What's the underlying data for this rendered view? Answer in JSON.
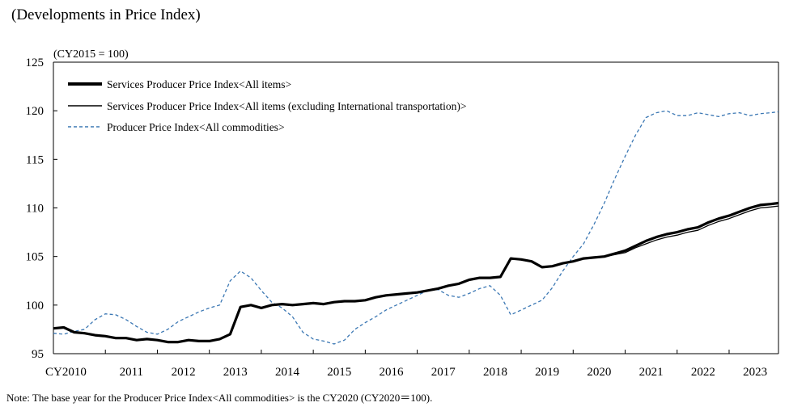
{
  "page_title": "(Developments in Price Index)",
  "unit_label": "(CY2015 = 100)",
  "note": "Note: The base year for the Producer Price Index<All commodities> is the CY2020 (CY2020＝100).",
  "chart_data": {
    "type": "line",
    "title": "(Developments in Price Index)",
    "xlabel": "",
    "ylabel": "(CY2015 = 100)",
    "ylim": [
      95,
      125
    ],
    "yticks": [
      95,
      100,
      105,
      110,
      115,
      120,
      125
    ],
    "xlim": [
      2010.0,
      2023.95
    ],
    "xtick_labels": [
      {
        "label": "CY2010",
        "x": 2010.0
      },
      {
        "label": "2011",
        "x": 2011.5
      },
      {
        "label": "2012",
        "x": 2012.5
      },
      {
        "label": "2013",
        "x": 2013.5
      },
      {
        "label": "2014",
        "x": 2014.5
      },
      {
        "label": "2015",
        "x": 2015.5
      },
      {
        "label": "2016",
        "x": 2016.5
      },
      {
        "label": "2017",
        "x": 2017.5
      },
      {
        "label": "2018",
        "x": 2018.5
      },
      {
        "label": "2019",
        "x": 2019.5
      },
      {
        "label": "2020",
        "x": 2020.5
      },
      {
        "label": "2021",
        "x": 2021.5
      },
      {
        "label": "2022",
        "x": 2022.5
      },
      {
        "label": "2023",
        "x": 2023.5
      }
    ],
    "legend_position": "top-left",
    "series": [
      {
        "name": "Services Producer Price Index<All items>",
        "style": "thick",
        "color": "#000000",
        "x": [
          2010.0,
          2010.2,
          2010.4,
          2010.6,
          2010.8,
          2011.0,
          2011.2,
          2011.4,
          2011.6,
          2011.8,
          2012.0,
          2012.2,
          2012.4,
          2012.6,
          2012.8,
          2013.0,
          2013.2,
          2013.4,
          2013.6,
          2013.8,
          2014.0,
          2014.2,
          2014.4,
          2014.6,
          2014.8,
          2015.0,
          2015.2,
          2015.4,
          2015.6,
          2015.8,
          2016.0,
          2016.2,
          2016.4,
          2016.6,
          2016.8,
          2017.0,
          2017.2,
          2017.4,
          2017.6,
          2017.8,
          2018.0,
          2018.2,
          2018.4,
          2018.6,
          2018.8,
          2019.0,
          2019.2,
          2019.4,
          2019.6,
          2019.8,
          2020.0,
          2020.2,
          2020.4,
          2020.6,
          2020.8,
          2021.0,
          2021.2,
          2021.4,
          2021.6,
          2021.8,
          2022.0,
          2022.2,
          2022.4,
          2022.6,
          2022.8,
          2023.0,
          2023.2,
          2023.4,
          2023.6,
          2023.8,
          2023.95
        ],
        "values": [
          97.6,
          97.7,
          97.2,
          97.1,
          96.9,
          96.8,
          96.6,
          96.6,
          96.4,
          96.5,
          96.4,
          96.2,
          96.2,
          96.4,
          96.3,
          96.3,
          96.5,
          97.0,
          99.8,
          100.0,
          99.7,
          100.0,
          100.1,
          100.0,
          100.1,
          100.2,
          100.1,
          100.3,
          100.4,
          100.4,
          100.5,
          100.8,
          101.0,
          101.1,
          101.2,
          101.3,
          101.5,
          101.7,
          102.0,
          102.2,
          102.6,
          102.8,
          102.8,
          102.9,
          104.8,
          104.7,
          104.5,
          103.9,
          104.0,
          104.3,
          104.5,
          104.8,
          104.9,
          105.0,
          105.3,
          105.6,
          106.1,
          106.6,
          107.0,
          107.3,
          107.5,
          107.8,
          108.0,
          108.5,
          108.9,
          109.2,
          109.6,
          110.0,
          110.3,
          110.4,
          110.5
        ]
      },
      {
        "name": "Services Producer Price Index<All items (excluding International transportation)>",
        "style": "thin",
        "color": "#000000",
        "x": [
          2010.0,
          2010.2,
          2010.4,
          2010.6,
          2010.8,
          2011.0,
          2011.2,
          2011.4,
          2011.6,
          2011.8,
          2012.0,
          2012.2,
          2012.4,
          2012.6,
          2012.8,
          2013.0,
          2013.2,
          2013.4,
          2013.6,
          2013.8,
          2014.0,
          2014.2,
          2014.4,
          2014.6,
          2014.8,
          2015.0,
          2015.2,
          2015.4,
          2015.6,
          2015.8,
          2016.0,
          2016.2,
          2016.4,
          2016.6,
          2016.8,
          2017.0,
          2017.2,
          2017.4,
          2017.6,
          2017.8,
          2018.0,
          2018.2,
          2018.4,
          2018.6,
          2018.8,
          2019.0,
          2019.2,
          2019.4,
          2019.6,
          2019.8,
          2020.0,
          2020.2,
          2020.4,
          2020.6,
          2020.8,
          2021.0,
          2021.2,
          2021.4,
          2021.6,
          2021.8,
          2022.0,
          2022.2,
          2022.4,
          2022.6,
          2022.8,
          2023.0,
          2023.2,
          2023.4,
          2023.6,
          2023.8,
          2023.95
        ],
        "values": [
          97.6,
          97.7,
          97.2,
          97.1,
          96.9,
          96.8,
          96.6,
          96.6,
          96.4,
          96.5,
          96.4,
          96.2,
          96.2,
          96.4,
          96.3,
          96.3,
          96.5,
          97.0,
          99.8,
          100.0,
          99.7,
          100.0,
          100.1,
          100.0,
          100.1,
          100.2,
          100.1,
          100.3,
          100.4,
          100.4,
          100.5,
          100.8,
          101.0,
          101.1,
          101.2,
          101.3,
          101.5,
          101.7,
          102.0,
          102.2,
          102.6,
          102.8,
          102.8,
          102.9,
          104.8,
          104.7,
          104.5,
          103.9,
          104.0,
          104.3,
          104.5,
          104.8,
          104.9,
          105.0,
          105.2,
          105.4,
          105.9,
          106.3,
          106.7,
          107.0,
          107.2,
          107.5,
          107.7,
          108.2,
          108.6,
          108.9,
          109.3,
          109.7,
          110.0,
          110.1,
          110.2
        ]
      },
      {
        "name": "Producer Price Index<All commodities>",
        "style": "dashed",
        "color": "#3c78b4",
        "x": [
          2010.0,
          2010.2,
          2010.4,
          2010.6,
          2010.8,
          2011.0,
          2011.2,
          2011.4,
          2011.6,
          2011.8,
          2012.0,
          2012.2,
          2012.4,
          2012.6,
          2012.8,
          2013.0,
          2013.2,
          2013.4,
          2013.6,
          2013.8,
          2014.0,
          2014.2,
          2014.4,
          2014.6,
          2014.8,
          2015.0,
          2015.2,
          2015.4,
          2015.6,
          2015.8,
          2016.0,
          2016.2,
          2016.4,
          2016.6,
          2016.8,
          2017.0,
          2017.2,
          2017.4,
          2017.6,
          2017.8,
          2018.0,
          2018.2,
          2018.4,
          2018.6,
          2018.8,
          2019.0,
          2019.2,
          2019.4,
          2019.6,
          2019.8,
          2020.0,
          2020.2,
          2020.4,
          2020.6,
          2020.8,
          2021.0,
          2021.2,
          2021.4,
          2021.6,
          2021.8,
          2022.0,
          2022.2,
          2022.4,
          2022.6,
          2022.8,
          2023.0,
          2023.2,
          2023.4,
          2023.6,
          2023.8,
          2023.95
        ],
        "values": [
          97.1,
          97.0,
          97.3,
          97.5,
          98.5,
          99.1,
          99.0,
          98.5,
          97.8,
          97.2,
          97.0,
          97.5,
          98.3,
          98.8,
          99.3,
          99.7,
          100.0,
          102.5,
          103.5,
          102.8,
          101.5,
          100.3,
          99.7,
          98.8,
          97.2,
          96.5,
          96.3,
          96.0,
          96.4,
          97.5,
          98.2,
          98.8,
          99.5,
          100.0,
          100.5,
          101.0,
          101.5,
          101.6,
          101.0,
          100.8,
          101.2,
          101.7,
          102.0,
          101.0,
          99.0,
          99.5,
          100.0,
          100.5,
          101.8,
          103.5,
          105.0,
          106.3,
          108.3,
          110.5,
          113.0,
          115.3,
          117.5,
          119.3,
          119.8,
          120.0,
          119.5,
          119.5,
          119.8,
          119.6,
          119.4,
          119.7,
          119.8,
          119.5,
          119.7,
          119.8,
          119.9
        ]
      }
    ]
  }
}
